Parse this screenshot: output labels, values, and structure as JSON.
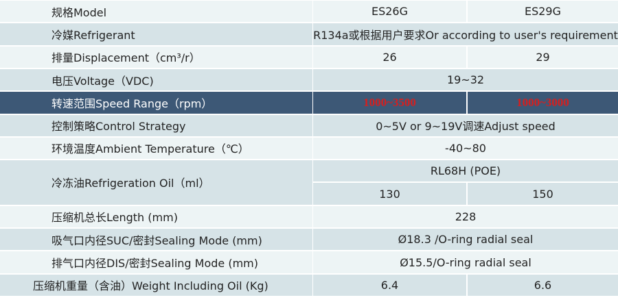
{
  "table": {
    "rows": [
      {
        "label": "规格Model",
        "cells": [
          "ES26G",
          "ES29G"
        ]
      },
      {
        "label": "冷媒Refrigerant",
        "cells": [
          "R134a或根据用户要求Or according to user's requirement"
        ]
      },
      {
        "label": "排量Displacement（cm³/r）",
        "cells": [
          "26",
          "29"
        ]
      },
      {
        "label": "电压Voltage（VDC)",
        "cells": [
          "19~32"
        ]
      },
      {
        "label": "转速范围Speed Range（rpm）",
        "cells": [
          "1000~3500",
          "1000~3000"
        ]
      },
      {
        "label": "控制策略Control Strategy",
        "cells": [
          "0~5V or 9~19V调速Adjust speed"
        ]
      },
      {
        "label": "环境温度Ambient Temperature（℃）",
        "cells": [
          "-40~80"
        ]
      },
      {
        "label": "冷冻油Refrigeration Oil（ml）",
        "cells": [
          "RL68H (POE)"
        ],
        "sub_cells": [
          "130",
          "150"
        ]
      },
      {
        "label": "压缩机总长Length (mm)",
        "cells": [
          "228"
        ]
      },
      {
        "label": "吸气口内径SUC/密封Sealing Mode (mm)",
        "cells": [
          "Ø18.3 /O-ring radial seal"
        ]
      },
      {
        "label": "排气口内径DIS/密封Sealing Mode (mm)",
        "cells": [
          "Ø15.5/O-ring radial seal"
        ]
      },
      {
        "label": "压缩机重量（含油）Weight Including Oil (Kg)",
        "cells": [
          "6.4",
          "6.6"
        ]
      }
    ]
  }
}
